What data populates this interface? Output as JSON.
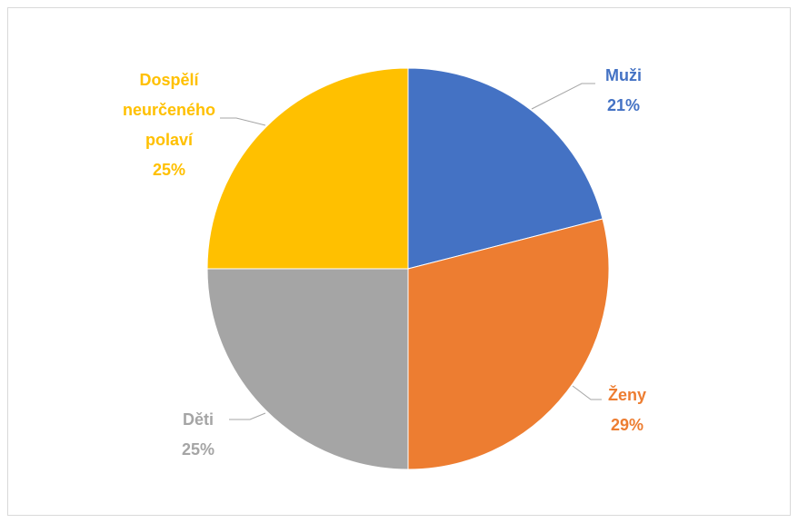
{
  "chart_data": {
    "type": "pie",
    "categories": [
      "Muži",
      "Ženy",
      "Děti",
      "Dospělí neurčeného polaví"
    ],
    "values": [
      21,
      29,
      25,
      25
    ],
    "value_labels": [
      "21%",
      "29%",
      "25%",
      "25%"
    ],
    "colors": [
      "#4472c4",
      "#ed7d31",
      "#a5a5a5",
      "#ffc000"
    ]
  }
}
